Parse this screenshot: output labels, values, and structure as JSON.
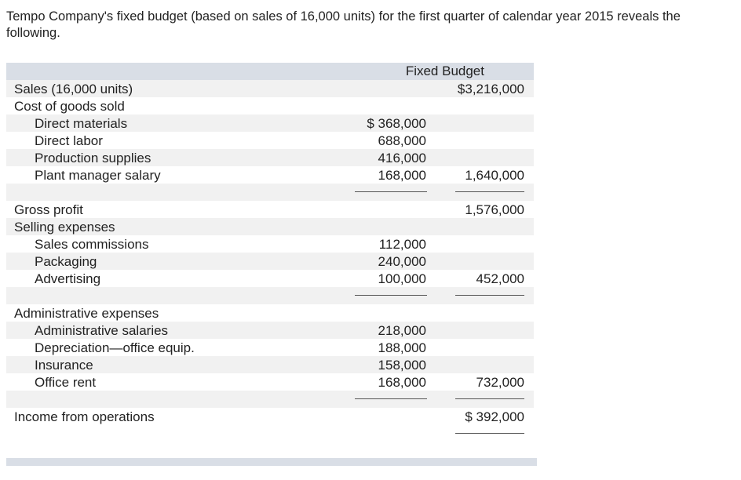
{
  "intro": "Tempo Company's fixed budget (based on sales of 16,000 units) for the first quarter of calendar year 2015 reveals the following.",
  "table": {
    "header": "Fixed Budget",
    "groups": [
      [
        {
          "label": "Sales (16,000 units)",
          "total": "$3,216,000"
        },
        {
          "label": "Cost of goods sold"
        },
        {
          "label": "Direct materials",
          "amount": "$ 368,000"
        },
        {
          "label": "Direct labor",
          "amount": "688,000"
        },
        {
          "label": "Production supplies",
          "amount": "416,000"
        },
        {
          "label": "Plant manager salary",
          "amount": "168,000",
          "total": "1,640,000"
        }
      ],
      [
        {
          "label": "Gross profit",
          "total": "1,576,000"
        },
        {
          "label": "Selling expenses"
        },
        {
          "label": "Sales commissions",
          "amount": "112,000"
        },
        {
          "label": "Packaging",
          "amount": "240,000"
        },
        {
          "label": "Advertising",
          "amount": "100,000",
          "total": "452,000"
        }
      ],
      [
        {
          "label": "Administrative expenses"
        },
        {
          "label": "Administrative salaries",
          "amount": "218,000"
        },
        {
          "label": "Depreciation—office equip.",
          "amount": "188,000"
        },
        {
          "label": "Insurance",
          "amount": "158,000"
        },
        {
          "label": "Office rent",
          "amount": "168,000",
          "total": "732,000"
        }
      ],
      [
        {
          "label": "Income from operations",
          "total": "$  392,000"
        }
      ]
    ]
  }
}
